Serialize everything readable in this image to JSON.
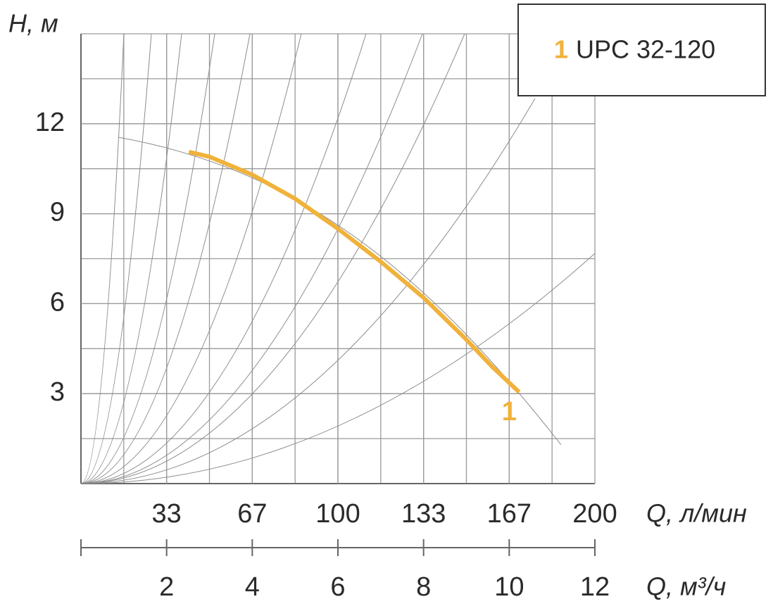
{
  "chart_data": {
    "type": "line",
    "y_label": "H, м",
    "x_label": "Q, м³/ч",
    "x2_label": "Q, л/мин",
    "xlim": [
      0,
      12
    ],
    "xticks": [
      2,
      4,
      6,
      8,
      10,
      12
    ],
    "x2ticks": [
      {
        "value": 2,
        "label": "33"
      },
      {
        "value": 4,
        "label": "67"
      },
      {
        "value": 6,
        "label": "100"
      },
      {
        "value": 8,
        "label": "133"
      },
      {
        "value": 10,
        "label": "167"
      },
      {
        "value": 12,
        "label": "200"
      }
    ],
    "ylim": [
      0,
      15
    ],
    "yticks": [
      3,
      6,
      9,
      12
    ],
    "grid": true,
    "series": [
      {
        "name": "UPC 32-120",
        "label": "1",
        "color": "#f0b23a",
        "x": [
          2.52,
          3,
          4,
          5,
          6,
          7,
          8,
          9,
          9.6,
          10.23
        ],
        "values": [
          11.06,
          10.9,
          10.3,
          9.5,
          8.5,
          7.4,
          6.2,
          4.8,
          3.9,
          3.05
        ]
      }
    ]
  }
}
